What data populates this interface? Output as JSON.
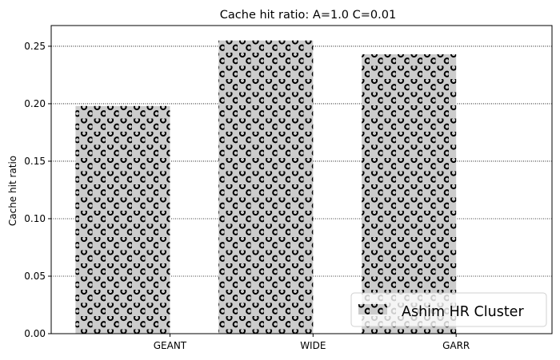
{
  "chart_data": {
    "type": "bar",
    "title": "Cache hit ratio: A=1.0 C=0.01",
    "xlabel": "",
    "ylabel": "Cache hit ratio",
    "categories": [
      "GEANT",
      "WIDE",
      "GARR"
    ],
    "series": [
      {
        "name": "Ashim HR Cluster",
        "values": [
          0.198,
          0.255,
          0.243
        ]
      }
    ],
    "ylim": [
      0,
      0.268
    ],
    "yticks": [
      0.0,
      0.05,
      0.1,
      0.15,
      0.2,
      0.25
    ],
    "ytick_labels": [
      "0.00",
      "0.05",
      "0.10",
      "0.15",
      "0.20",
      "0.25"
    ],
    "grid": "y-dotted",
    "legend_position": "lower-right",
    "bar_color": "#cccccc",
    "hatch": "circles"
  }
}
